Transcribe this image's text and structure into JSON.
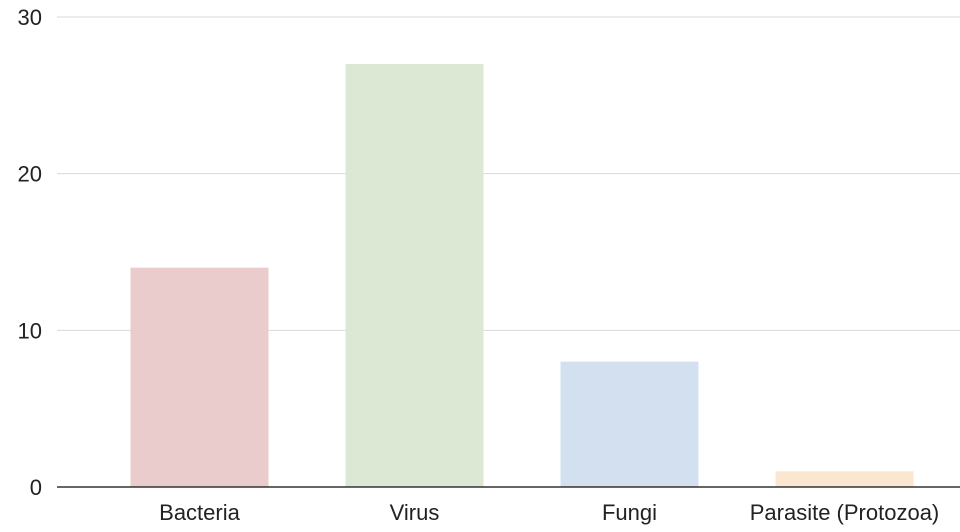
{
  "chart_data": {
    "type": "bar",
    "title": "",
    "xlabel": "",
    "ylabel": "",
    "categories": [
      "Bacteria",
      "Virus",
      "Fungi",
      "Parasite (Protozoa)"
    ],
    "values": [
      14,
      27,
      8,
      1
    ],
    "colors": [
      "#ebcccc",
      "#dce8d4",
      "#d2e0f0",
      "#fbe6cf"
    ],
    "ylim": [
      0,
      30
    ],
    "yticks": [
      {
        "value": 0,
        "label": "0"
      },
      {
        "value": 10,
        "label": "10"
      },
      {
        "value": 20,
        "label": "20"
      },
      {
        "value": 30,
        "label": "30"
      }
    ],
    "grid": true,
    "legend": "none"
  }
}
